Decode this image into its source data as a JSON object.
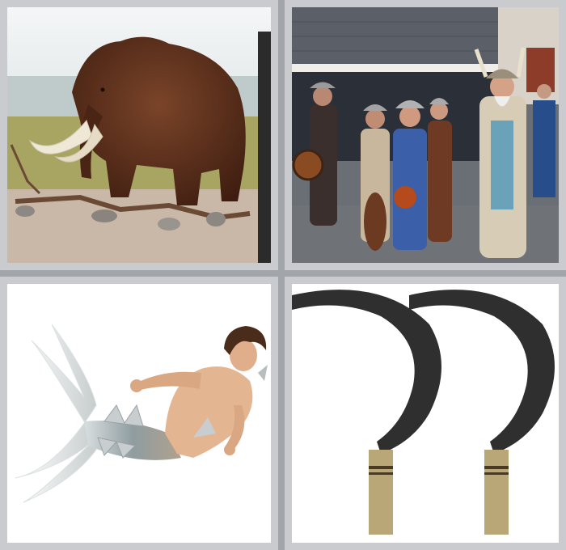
{
  "puzzle": {
    "tiles": [
      {
        "subject": "woolly-mammoth"
      },
      {
        "subject": "vikings-parade"
      },
      {
        "subject": "merman"
      },
      {
        "subject": "sickles"
      }
    ]
  },
  "colors": {
    "frame": "#c9cbce",
    "background": "#a2a5a9",
    "mammoth_fur": "#5a2e1c",
    "tusk": "#efe8d6",
    "sickle_blade": "#2f2f2f",
    "sickle_handle": "#b9a778",
    "fish_tail": "#9aa7ab"
  }
}
